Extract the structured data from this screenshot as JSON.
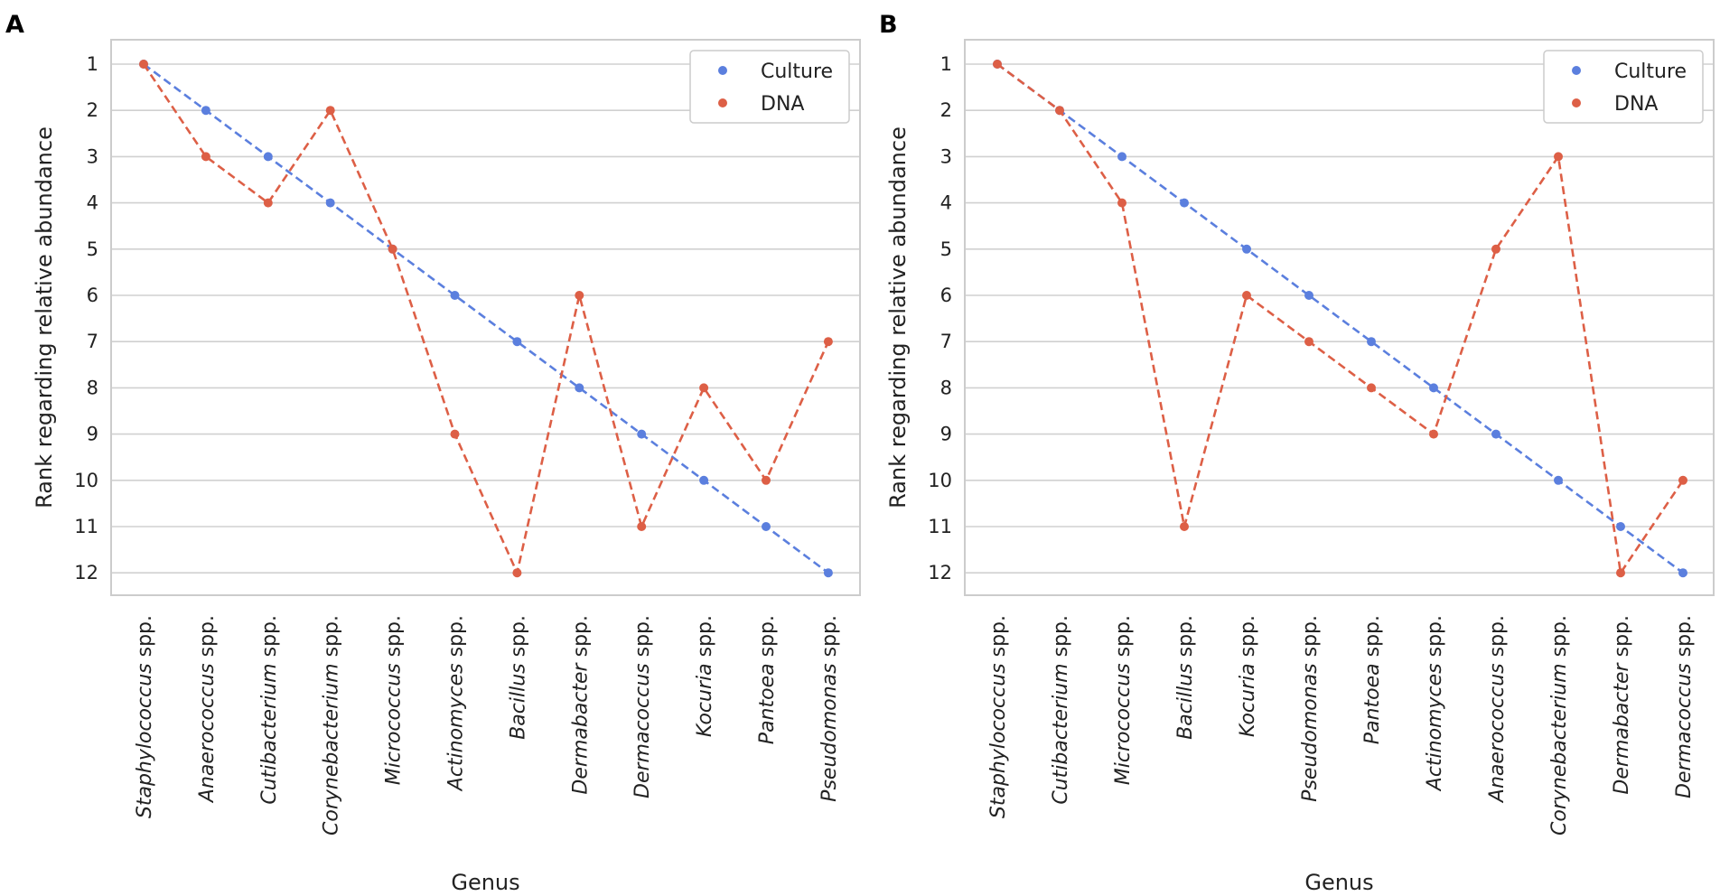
{
  "chart_data": [
    {
      "type": "line",
      "panel_label": "A",
      "title": "",
      "xlabel": "Genus",
      "ylabel": "Rank regarding relative abundance",
      "ylim": [
        1,
        12
      ],
      "y_inverted": true,
      "y_ticks": [
        "1",
        "2",
        "3",
        "4",
        "5",
        "6",
        "7",
        "8",
        "9",
        "10",
        "11",
        "12"
      ],
      "categories": [
        {
          "italic": "Staphylococcus",
          "suffix": " spp."
        },
        {
          "italic": "Anaerococcus",
          "suffix": " spp."
        },
        {
          "italic": "Cutibacterium",
          "suffix": " spp."
        },
        {
          "italic": "Corynebacterium",
          "suffix": " spp."
        },
        {
          "italic": "Micrococcus",
          "suffix": " spp."
        },
        {
          "italic": "Actinomyces",
          "suffix": " spp."
        },
        {
          "italic": "Bacillus",
          "suffix": " spp."
        },
        {
          "italic": "Dermabacter",
          "suffix": " spp."
        },
        {
          "italic": "Dermacoccus",
          "suffix": " spp."
        },
        {
          "italic": "Kocuria",
          "suffix": " spp."
        },
        {
          "italic": "Pantoea",
          "suffix": " spp."
        },
        {
          "italic": "Pseudomonas",
          "suffix": " spp."
        }
      ],
      "series": [
        {
          "name": "Culture",
          "color": "#5b7fde",
          "values": [
            1,
            2,
            3,
            4,
            5,
            6,
            7,
            8,
            9,
            10,
            11,
            12
          ]
        },
        {
          "name": "DNA",
          "color": "#dd5f46",
          "values": [
            1,
            3,
            4,
            2,
            5,
            9,
            12,
            6,
            11,
            8,
            10,
            7
          ]
        }
      ],
      "legend": "top-right",
      "grid": "horizontal"
    },
    {
      "type": "line",
      "panel_label": "B",
      "title": "",
      "xlabel": "Genus",
      "ylabel": "Rank regarding relative abundance",
      "ylim": [
        1,
        12
      ],
      "y_inverted": true,
      "y_ticks": [
        "1",
        "2",
        "3",
        "4",
        "5",
        "6",
        "7",
        "8",
        "9",
        "10",
        "11",
        "12"
      ],
      "categories": [
        {
          "italic": "Staphylococcus",
          "suffix": " spp."
        },
        {
          "italic": "Cutibacterium",
          "suffix": " spp."
        },
        {
          "italic": "Micrococcus",
          "suffix": " spp."
        },
        {
          "italic": "Bacillus",
          "suffix": " spp."
        },
        {
          "italic": "Kocuria",
          "suffix": " spp."
        },
        {
          "italic": "Pseudomonas",
          "suffix": " spp."
        },
        {
          "italic": "Pantoea",
          "suffix": " spp."
        },
        {
          "italic": "Actinomyces",
          "suffix": " spp."
        },
        {
          "italic": "Anaerococcus",
          "suffix": " spp."
        },
        {
          "italic": "Corynebacterium",
          "suffix": " spp."
        },
        {
          "italic": "Dermabacter",
          "suffix": " spp."
        },
        {
          "italic": "Dermacoccus",
          "suffix": " spp."
        }
      ],
      "series": [
        {
          "name": "Culture",
          "color": "#5b7fde",
          "values": [
            1,
            2,
            3,
            4,
            5,
            6,
            7,
            8,
            9,
            10,
            11,
            12
          ]
        },
        {
          "name": "DNA",
          "color": "#dd5f46",
          "values": [
            1,
            2,
            4,
            11,
            6,
            7,
            8,
            9,
            5,
            3,
            12,
            10
          ]
        }
      ],
      "legend": "top-right",
      "grid": "horizontal"
    }
  ]
}
